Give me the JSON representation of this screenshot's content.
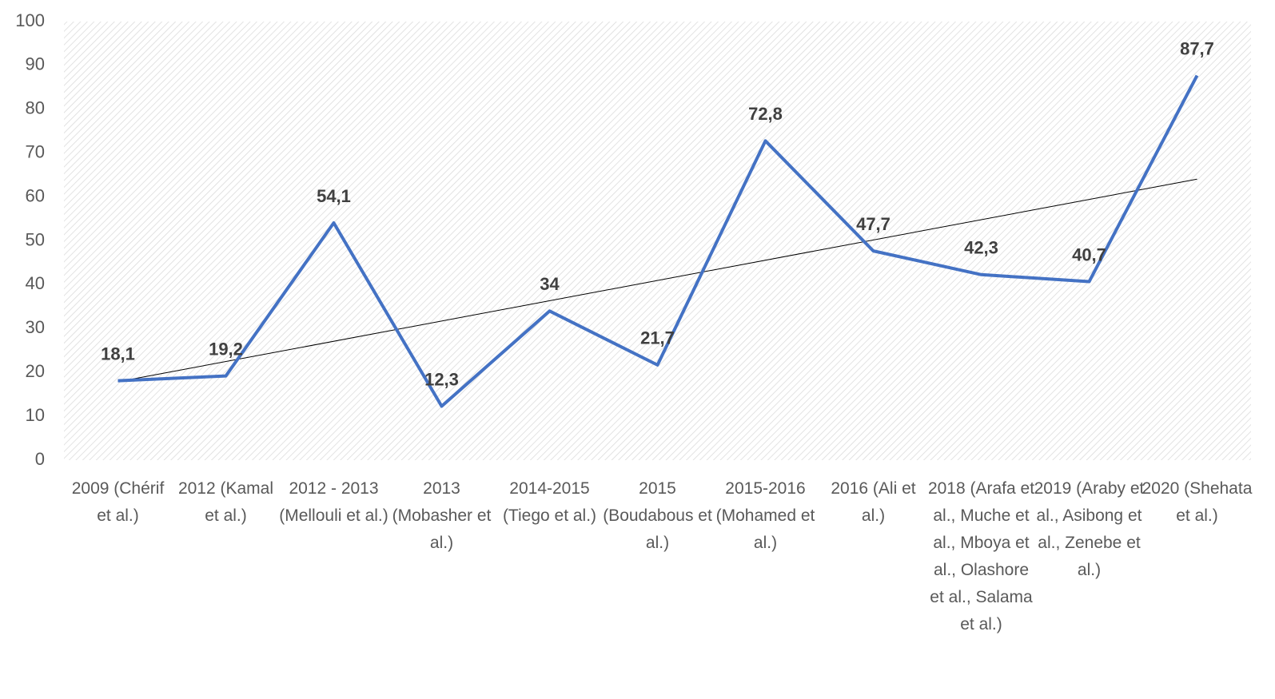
{
  "chart_data": {
    "type": "line",
    "categories": [
      "2009 (Chérif et al.)",
      "2012 (Kamal et al.)",
      "2012 - 2013 (Mellouli et al.)",
      "2013 (Mobasher et al.)",
      "2014-2015 (Tiego et al.)",
      "2015 (Boudabous et al.)",
      "2015-2016 (Mohamed et al.)",
      "2016 (Ali et al.)",
      "2018 (Arafa et al., Muche et al., Mboya et al., Olashore et al., Salama et al.)",
      "2019 (Araby et al., Asibong et al., Zenebe et al.)",
      "2020 (Shehata et al.)"
    ],
    "series": [
      {
        "color": "#4472c4",
        "values": [
          18.1,
          19.2,
          54.1,
          12.3,
          34,
          21.7,
          72.8,
          47.7,
          42.3,
          40.7,
          87.7
        ],
        "value_labels": [
          "18,1",
          "19,2",
          "54,1",
          "12,3",
          "34",
          "21,7",
          "72,8",
          "47,7",
          "42,3",
          "40,7",
          "87,7"
        ]
      }
    ],
    "trendline": "linear",
    "ylim": [
      0,
      100
    ],
    "yticks": [
      0,
      10,
      20,
      30,
      40,
      50,
      60,
      70,
      80,
      90,
      100
    ],
    "grid": false
  }
}
